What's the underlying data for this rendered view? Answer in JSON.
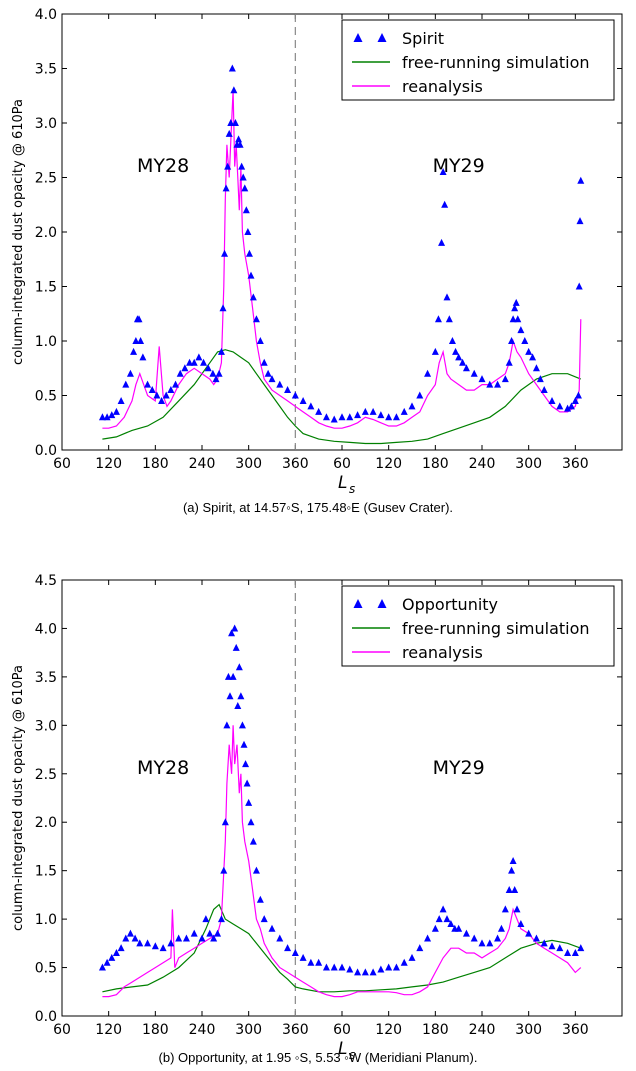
{
  "chart_data": [
    {
      "type": "line",
      "caption": "(a) Spirit, at 14.57◦S, 175.48◦E (Gusev Crater).",
      "xlabel": "L",
      "xlabel_sub": "s",
      "ylabel": "column-integrated dust opacity @ 610Pa",
      "xtick_labels": [
        "60",
        "120",
        "180",
        "240",
        "300",
        "360",
        "60",
        "120",
        "180",
        "240",
        "300",
        "360"
      ],
      "xlim": [
        60,
        780
      ],
      "ylim": [
        0,
        4.0
      ],
      "yticks": [
        0.0,
        0.5,
        1.0,
        1.5,
        2.0,
        2.5,
        3.0,
        3.5,
        4.0
      ],
      "divider_x": 360,
      "annotations": [
        {
          "text": "MY28",
          "x": 190,
          "y": 2.55
        },
        {
          "text": "MY29",
          "x": 570,
          "y": 2.55
        }
      ],
      "legend": {
        "position": "top-right"
      },
      "series": [
        {
          "name": "Spirit",
          "style": "markers",
          "color": "#0000ff",
          "x": [
            112,
            118,
            124,
            130,
            136,
            142,
            148,
            152,
            155,
            157,
            159,
            161,
            164,
            170,
            176,
            182,
            188,
            194,
            200,
            206,
            212,
            218,
            224,
            230,
            236,
            242,
            248,
            254,
            258,
            262,
            265,
            267,
            269,
            271,
            273,
            275,
            277,
            279,
            281,
            283,
            285,
            287,
            289,
            291,
            293,
            295,
            297,
            299,
            301,
            303,
            306,
            310,
            315,
            320,
            325,
            330,
            340,
            350,
            360,
            370,
            380,
            390,
            400,
            410,
            420,
            430,
            440,
            450,
            460,
            470,
            480,
            490,
            500,
            510,
            520,
            530,
            540,
            544,
            548,
            550,
            552,
            555,
            558,
            562,
            566,
            570,
            575,
            580,
            590,
            600,
            610,
            620,
            630,
            635,
            638,
            640,
            642,
            644,
            646,
            650,
            655,
            660,
            665,
            670,
            675,
            680,
            690,
            700,
            710,
            715,
            720,
            724,
            725,
            726,
            727
          ],
          "y": [
            0.3,
            0.3,
            0.32,
            0.35,
            0.45,
            0.6,
            0.7,
            0.9,
            1.0,
            1.2,
            1.2,
            1.0,
            0.85,
            0.6,
            0.55,
            0.5,
            0.45,
            0.5,
            0.55,
            0.6,
            0.7,
            0.75,
            0.8,
            0.8,
            0.85,
            0.8,
            0.75,
            0.7,
            0.65,
            0.7,
            0.9,
            1.3,
            1.8,
            2.4,
            2.6,
            2.9,
            3.0,
            3.5,
            3.3,
            3.0,
            2.8,
            2.85,
            2.8,
            2.6,
            2.5,
            2.4,
            2.2,
            2.0,
            1.8,
            1.6,
            1.4,
            1.2,
            1.0,
            0.8,
            0.7,
            0.65,
            0.6,
            0.55,
            0.5,
            0.45,
            0.4,
            0.35,
            0.3,
            0.28,
            0.3,
            0.3,
            0.32,
            0.35,
            0.35,
            0.32,
            0.3,
            0.3,
            0.35,
            0.4,
            0.5,
            0.7,
            0.9,
            1.2,
            1.9,
            2.55,
            2.25,
            1.4,
            1.2,
            1.0,
            0.9,
            0.85,
            0.8,
            0.75,
            0.7,
            0.65,
            0.6,
            0.6,
            0.65,
            0.8,
            1.0,
            1.2,
            1.3,
            1.35,
            1.2,
            1.1,
            1.0,
            0.9,
            0.85,
            0.75,
            0.65,
            0.55,
            0.45,
            0.4,
            0.38,
            0.4,
            0.45,
            0.5,
            1.5,
            2.1,
            2.47
          ]
        },
        {
          "name": "free-running simulation",
          "style": "line",
          "color": "#008000",
          "x": [
            112,
            130,
            150,
            170,
            190,
            210,
            230,
            250,
            260,
            270,
            280,
            290,
            300,
            310,
            320,
            330,
            340,
            350,
            360,
            370,
            390,
            410,
            430,
            450,
            470,
            490,
            510,
            530,
            550,
            570,
            590,
            610,
            630,
            650,
            670,
            690,
            710,
            727
          ],
          "y": [
            0.1,
            0.12,
            0.18,
            0.22,
            0.3,
            0.45,
            0.6,
            0.8,
            0.9,
            0.92,
            0.9,
            0.85,
            0.8,
            0.7,
            0.6,
            0.5,
            0.4,
            0.3,
            0.22,
            0.15,
            0.1,
            0.08,
            0.07,
            0.06,
            0.06,
            0.07,
            0.08,
            0.1,
            0.15,
            0.2,
            0.25,
            0.3,
            0.4,
            0.55,
            0.65,
            0.7,
            0.7,
            0.65
          ]
        },
        {
          "name": "reanalysis",
          "style": "line",
          "color": "#ff00ff",
          "x": [
            112,
            120,
            130,
            140,
            150,
            155,
            160,
            165,
            170,
            180,
            185,
            190,
            195,
            200,
            210,
            220,
            230,
            240,
            250,
            255,
            260,
            265,
            268,
            270,
            272,
            275,
            278,
            280,
            282,
            284,
            286,
            288,
            290,
            292,
            295,
            300,
            305,
            310,
            315,
            320,
            330,
            340,
            350,
            360,
            370,
            380,
            390,
            400,
            410,
            420,
            430,
            440,
            450,
            460,
            470,
            480,
            490,
            500,
            510,
            520,
            530,
            540,
            545,
            550,
            555,
            560,
            570,
            580,
            590,
            600,
            610,
            620,
            630,
            635,
            640,
            645,
            650,
            660,
            670,
            680,
            690,
            700,
            710,
            720,
            725,
            727
          ],
          "y": [
            0.2,
            0.2,
            0.22,
            0.3,
            0.45,
            0.6,
            0.7,
            0.6,
            0.5,
            0.45,
            0.95,
            0.5,
            0.4,
            0.45,
            0.6,
            0.7,
            0.75,
            0.7,
            0.65,
            0.6,
            0.65,
            0.8,
            1.5,
            2.3,
            2.8,
            2.5,
            3.0,
            3.3,
            2.6,
            2.8,
            2.5,
            2.2,
            2.6,
            2.0,
            1.8,
            1.6,
            1.3,
            1.0,
            0.8,
            0.65,
            0.55,
            0.5,
            0.45,
            0.4,
            0.35,
            0.3,
            0.25,
            0.22,
            0.2,
            0.2,
            0.22,
            0.25,
            0.3,
            0.28,
            0.25,
            0.22,
            0.22,
            0.25,
            0.3,
            0.35,
            0.5,
            0.6,
            0.8,
            0.9,
            0.7,
            0.65,
            0.6,
            0.55,
            0.55,
            0.6,
            0.6,
            0.65,
            0.7,
            0.8,
            1.0,
            0.9,
            0.85,
            0.7,
            0.6,
            0.5,
            0.4,
            0.35,
            0.35,
            0.4,
            0.55,
            1.2
          ]
        }
      ]
    },
    {
      "type": "line",
      "caption": "(b) Opportunity, at 1.95 ◦S, 5.53 ◦W (Meridiani Planum).",
      "xlabel": "L",
      "xlabel_sub": "s",
      "ylabel": "column-integrated dust opacity @ 610Pa",
      "xtick_labels": [
        "60",
        "120",
        "180",
        "240",
        "300",
        "360",
        "60",
        "120",
        "180",
        "240",
        "300",
        "360"
      ],
      "xlim": [
        60,
        780
      ],
      "ylim": [
        0,
        4.5
      ],
      "yticks": [
        0.0,
        0.5,
        1.0,
        1.5,
        2.0,
        2.5,
        3.0,
        3.5,
        4.0,
        4.5
      ],
      "divider_x": 360,
      "annotations": [
        {
          "text": "MY28",
          "x": 190,
          "y": 2.5
        },
        {
          "text": "MY29",
          "x": 570,
          "y": 2.5
        }
      ],
      "legend": {
        "position": "top-right"
      },
      "series": [
        {
          "name": "Opportunity",
          "style": "markers",
          "color": "#0000ff",
          "x": [
            112,
            118,
            124,
            130,
            136,
            142,
            148,
            154,
            160,
            170,
            180,
            190,
            200,
            210,
            220,
            230,
            240,
            245,
            250,
            255,
            260,
            265,
            268,
            270,
            272,
            274,
            276,
            278,
            280,
            282,
            284,
            286,
            288,
            290,
            292,
            294,
            296,
            298,
            300,
            303,
            306,
            310,
            315,
            320,
            330,
            340,
            350,
            360,
            370,
            380,
            390,
            400,
            410,
            420,
            430,
            440,
            450,
            460,
            470,
            480,
            490,
            500,
            510,
            520,
            530,
            540,
            545,
            550,
            555,
            560,
            565,
            570,
            580,
            590,
            600,
            610,
            620,
            625,
            630,
            635,
            638,
            640,
            642,
            645,
            650,
            660,
            670,
            680,
            690,
            700,
            710,
            720,
            727
          ],
          "y": [
            0.5,
            0.55,
            0.6,
            0.65,
            0.7,
            0.8,
            0.85,
            0.8,
            0.75,
            0.75,
            0.72,
            0.7,
            0.75,
            0.8,
            0.8,
            0.85,
            0.8,
            1.0,
            0.85,
            0.8,
            0.85,
            1.0,
            1.5,
            2.0,
            3.0,
            3.5,
            3.3,
            3.95,
            3.5,
            4.0,
            3.8,
            3.2,
            3.6,
            3.3,
            3.0,
            2.8,
            2.6,
            2.4,
            2.2,
            2.0,
            1.8,
            1.5,
            1.2,
            1.0,
            0.9,
            0.8,
            0.7,
            0.65,
            0.6,
            0.55,
            0.55,
            0.5,
            0.5,
            0.5,
            0.48,
            0.45,
            0.45,
            0.45,
            0.48,
            0.5,
            0.5,
            0.55,
            0.6,
            0.7,
            0.8,
            0.9,
            1.0,
            1.1,
            1.0,
            0.95,
            0.9,
            0.9,
            0.85,
            0.8,
            0.75,
            0.75,
            0.8,
            0.9,
            1.1,
            1.3,
            1.5,
            1.6,
            1.3,
            1.1,
            0.95,
            0.85,
            0.8,
            0.75,
            0.72,
            0.7,
            0.65,
            0.65,
            0.7
          ]
        },
        {
          "name": "free-running simulation",
          "style": "line",
          "color": "#008000",
          "x": [
            112,
            130,
            150,
            170,
            190,
            210,
            230,
            245,
            255,
            262,
            270,
            280,
            290,
            300,
            310,
            320,
            330,
            340,
            350,
            360,
            370,
            390,
            410,
            430,
            450,
            470,
            490,
            510,
            530,
            550,
            570,
            590,
            610,
            630,
            650,
            670,
            690,
            710,
            727
          ],
          "y": [
            0.25,
            0.28,
            0.3,
            0.32,
            0.4,
            0.5,
            0.65,
            0.9,
            1.1,
            1.15,
            1.0,
            0.95,
            0.9,
            0.85,
            0.75,
            0.65,
            0.55,
            0.45,
            0.38,
            0.3,
            0.28,
            0.25,
            0.25,
            0.26,
            0.26,
            0.27,
            0.28,
            0.3,
            0.32,
            0.35,
            0.4,
            0.45,
            0.5,
            0.6,
            0.7,
            0.75,
            0.78,
            0.75,
            0.7
          ]
        },
        {
          "name": "reanalysis",
          "style": "line",
          "color": "#ff00ff",
          "x": [
            112,
            120,
            130,
            140,
            150,
            160,
            170,
            180,
            190,
            200,
            202,
            205,
            210,
            220,
            230,
            240,
            250,
            260,
            265,
            270,
            272,
            275,
            278,
            280,
            282,
            285,
            288,
            290,
            292,
            295,
            300,
            305,
            310,
            315,
            320,
            330,
            340,
            350,
            360,
            370,
            380,
            390,
            400,
            410,
            420,
            430,
            440,
            450,
            460,
            470,
            480,
            490,
            500,
            510,
            520,
            530,
            540,
            550,
            560,
            570,
            580,
            590,
            600,
            610,
            620,
            630,
            635,
            640,
            645,
            650,
            660,
            670,
            680,
            690,
            700,
            710,
            720,
            727
          ],
          "y": [
            0.2,
            0.2,
            0.22,
            0.3,
            0.35,
            0.4,
            0.45,
            0.5,
            0.55,
            0.6,
            1.1,
            0.5,
            0.6,
            0.65,
            0.7,
            0.75,
            0.8,
            0.85,
            1.0,
            1.8,
            2.4,
            2.8,
            2.5,
            3.0,
            2.6,
            2.8,
            2.3,
            2.5,
            2.0,
            1.8,
            1.6,
            1.3,
            1.0,
            0.9,
            0.75,
            0.6,
            0.5,
            0.45,
            0.4,
            0.35,
            0.3,
            0.25,
            0.22,
            0.2,
            0.2,
            0.22,
            0.25,
            0.25,
            0.25,
            0.25,
            0.25,
            0.24,
            0.22,
            0.22,
            0.25,
            0.3,
            0.45,
            0.6,
            0.7,
            0.7,
            0.65,
            0.65,
            0.6,
            0.65,
            0.7,
            0.8,
            0.9,
            1.1,
            1.0,
            0.9,
            0.85,
            0.75,
            0.7,
            0.65,
            0.6,
            0.55,
            0.45,
            0.5
          ]
        }
      ]
    }
  ]
}
